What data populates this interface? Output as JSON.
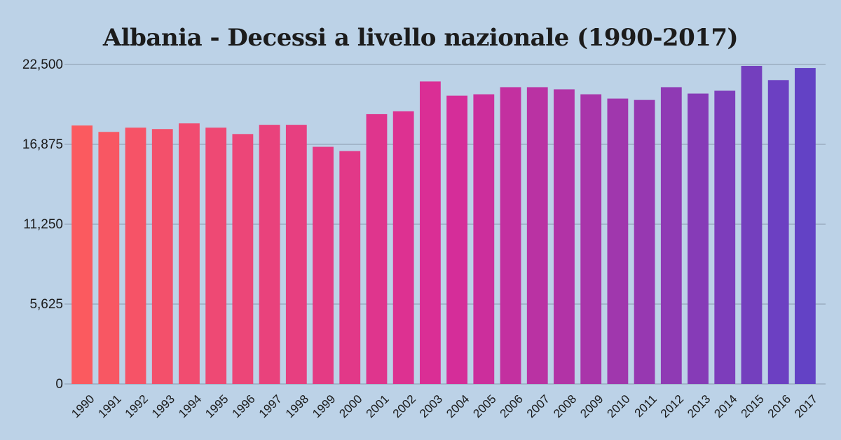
{
  "chart_data": {
    "type": "bar",
    "title": "Albania - Decessi a livello nazionale (1990-2017)",
    "xlabel": "",
    "ylabel": "",
    "ylim": [
      0,
      22500
    ],
    "yticks": [
      "0",
      "5,625",
      "11,250",
      "16,875",
      "22,500"
    ],
    "ytick_values": [
      0,
      5625,
      11250,
      16875,
      22500
    ],
    "grid": "horizontal",
    "legend": "none",
    "categories": [
      "1990",
      "1991",
      "1992",
      "1993",
      "1994",
      "1995",
      "1996",
      "1997",
      "1998",
      "1999",
      "2000",
      "2001",
      "2002",
      "2003",
      "2004",
      "2005",
      "2006",
      "2007",
      "2008",
      "2009",
      "2010",
      "2011",
      "2012",
      "2013",
      "2014",
      "2015",
      "2016",
      "2017"
    ],
    "values": [
      18200,
      17750,
      18050,
      17950,
      18350,
      18050,
      17600,
      18250,
      18250,
      16700,
      16400,
      19000,
      19200,
      21300,
      20300,
      20400,
      20900,
      20900,
      20750,
      20400,
      20100,
      20000,
      20900,
      20450,
      20650,
      22400,
      21400,
      22250
    ],
    "bar_color_start": "#fb5a5f",
    "bar_color_mid": "#d92c97",
    "bar_color_end": "#6342c5"
  }
}
